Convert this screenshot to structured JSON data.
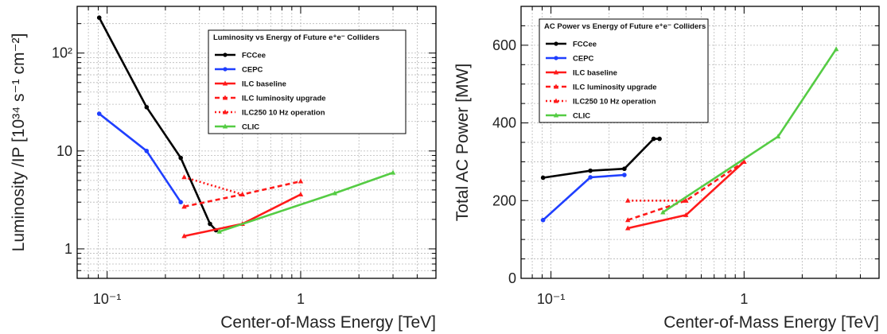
{
  "chart_data": [
    {
      "type": "line",
      "title": "",
      "xlabel": "Center-of-Mass Energy [TeV]",
      "ylabel": "Luminosity /IP [10³⁴ s⁻¹ cm⁻²]",
      "xscale": "log",
      "yscale": "log",
      "xlim": [
        0.07,
        5
      ],
      "ylim": [
        0.5,
        300
      ],
      "grid": true,
      "x_ticks": [
        {
          "v": 0.1,
          "t": "10⁻¹"
        },
        {
          "v": 1,
          "t": "1"
        }
      ],
      "y_ticks": [
        {
          "v": 1,
          "t": "1"
        },
        {
          "v": 10,
          "t": "10"
        },
        {
          "v": 100,
          "t": "10²"
        }
      ],
      "legend": {
        "placement": "top-right",
        "title": "Luminosity vs Energy of Future e⁺e⁻ Colliders"
      },
      "series": [
        {
          "name": "FCCee",
          "color": "#000000",
          "style": "solid",
          "marker": "dot",
          "x": [
            0.091,
            0.16,
            0.24,
            0.34,
            0.365
          ],
          "y": [
            230,
            28,
            8.5,
            1.8,
            1.55
          ]
        },
        {
          "name": "CEPC",
          "color": "#1f3fff",
          "style": "solid",
          "marker": "dot",
          "x": [
            0.091,
            0.16,
            0.24
          ],
          "y": [
            24,
            10,
            3.0
          ]
        },
        {
          "name": "ILC baseline",
          "color": "#ff1a1a",
          "style": "solid",
          "marker": "triangle",
          "x": [
            0.25,
            0.5,
            1.0
          ],
          "y": [
            1.35,
            1.8,
            3.6
          ]
        },
        {
          "name": "ILC luminosity upgrade",
          "color": "#ff1a1a",
          "style": "dashed",
          "marker": "triangle",
          "x": [
            0.25,
            0.5,
            1.0
          ],
          "y": [
            2.7,
            3.6,
            4.9
          ]
        },
        {
          "name": "ILC250 10 Hz operation",
          "color": "#ff1a1a",
          "style": "dotted",
          "marker": "triangle",
          "x": [
            0.25,
            0.5
          ],
          "y": [
            5.4,
            3.6
          ]
        },
        {
          "name": "CLIC",
          "color": "#55cc44",
          "style": "solid",
          "marker": "triangle",
          "x": [
            0.38,
            1.5,
            3.0
          ],
          "y": [
            1.5,
            3.7,
            6.0
          ]
        }
      ]
    },
    {
      "type": "line",
      "title": "",
      "xlabel": "Center-of-Mass Energy [TeV]",
      "ylabel": "Total AC Power [MW]",
      "xscale": "log",
      "yscale": "linear",
      "xlim": [
        0.07,
        5
      ],
      "ylim": [
        0,
        700
      ],
      "grid": true,
      "x_ticks": [
        {
          "v": 0.1,
          "t": "10⁻¹"
        },
        {
          "v": 1,
          "t": "1"
        }
      ],
      "y_ticks": [
        {
          "v": 0,
          "t": "0"
        },
        {
          "v": 200,
          "t": "200"
        },
        {
          "v": 400,
          "t": "400"
        },
        {
          "v": 600,
          "t": "600"
        }
      ],
      "legend": {
        "placement": "top-left",
        "title": "AC Power vs Energy of Future e⁺e⁻ Colliders"
      },
      "series": [
        {
          "name": "FCCee",
          "color": "#000000",
          "style": "solid",
          "marker": "dot",
          "x": [
            0.091,
            0.16,
            0.24,
            0.34,
            0.365
          ],
          "y": [
            259,
            277,
            282,
            359,
            359
          ]
        },
        {
          "name": "CEPC",
          "color": "#1f3fff",
          "style": "solid",
          "marker": "dot",
          "x": [
            0.091,
            0.16,
            0.24
          ],
          "y": [
            150,
            260,
            266
          ]
        },
        {
          "name": "ILC baseline",
          "color": "#ff1a1a",
          "style": "solid",
          "marker": "triangle",
          "x": [
            0.25,
            0.5,
            1.0
          ],
          "y": [
            129,
            163,
            300
          ]
        },
        {
          "name": "ILC luminosity upgrade",
          "color": "#ff1a1a",
          "style": "dashed",
          "marker": "triangle",
          "x": [
            0.25,
            0.5,
            1.0
          ],
          "y": [
            150,
            200,
            300
          ]
        },
        {
          "name": "ILC250 10 Hz operation",
          "color": "#ff1a1a",
          "style": "dotted",
          "marker": "triangle",
          "x": [
            0.25,
            0.5
          ],
          "y": [
            200,
            200
          ]
        },
        {
          "name": "CLIC",
          "color": "#55cc44",
          "style": "solid",
          "marker": "triangle",
          "x": [
            0.38,
            1.5,
            3.0
          ],
          "y": [
            170,
            365,
            590
          ]
        }
      ]
    }
  ]
}
